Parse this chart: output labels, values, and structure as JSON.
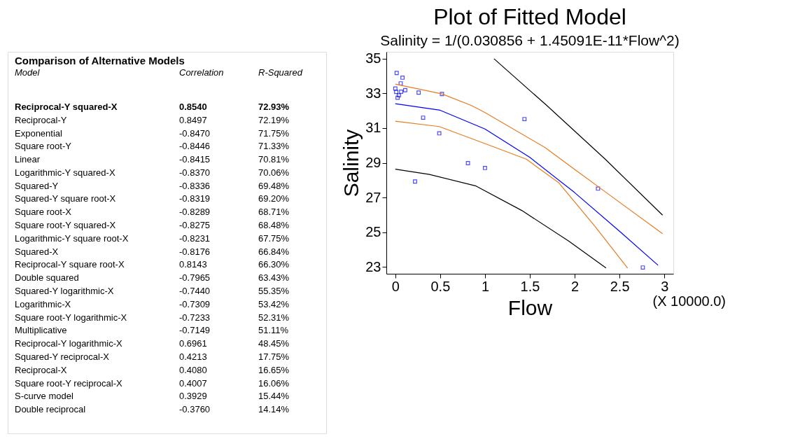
{
  "chart_data": [
    {
      "type": "other",
      "title": "Comparison of Alternative Models",
      "xlabel": "Model",
      "categories": [
        "Reciprocal-Y squared-X",
        "Reciprocal-Y",
        "Exponential",
        "Square root-Y",
        "Linear",
        "Logarithmic-Y squared-X",
        "Squared-Y",
        "Squared-Y square root-X",
        "Square root-X",
        "Square root-Y squared-X",
        "Logarithmic-Y square root-X",
        "Squared-X",
        "Reciprocal-Y square root-X",
        "Double squared",
        "Squared-Y logarithmic-X",
        "Logarithmic-X",
        "Square root-Y logarithmic-X",
        "Multiplicative",
        "Reciprocal-Y logarithmic-X",
        "Squared-Y reciprocal-X",
        "Reciprocal-X",
        "Square root-Y reciprocal-X",
        "S-curve model",
        "Double reciprocal"
      ],
      "series": [
        {
          "name": "Correlation",
          "values": [
            0.854,
            0.8497,
            -0.847,
            -0.8446,
            -0.8415,
            -0.837,
            -0.8336,
            -0.8319,
            -0.8289,
            -0.8275,
            -0.8231,
            -0.8176,
            0.8143,
            -0.7965,
            -0.744,
            -0.7309,
            -0.7233,
            -0.7149,
            0.6961,
            0.4213,
            0.408,
            0.4007,
            0.3929,
            -0.376
          ],
          "value_labels": [
            "0.8540",
            "0.8497",
            "-0.8470",
            "-0.8446",
            "-0.8415",
            "-0.8370",
            "-0.8336",
            "-0.8319",
            "-0.8289",
            "-0.8275",
            "-0.8231",
            "-0.8176",
            "0.8143",
            "-0.7965",
            "-0.7440",
            "-0.7309",
            "-0.7233",
            "-0.7149",
            "0.6961",
            "0.4213",
            "0.4080",
            "0.4007",
            "0.3929",
            "-0.3760"
          ]
        },
        {
          "name": "R-Squared",
          "values": [
            72.93,
            72.19,
            71.75,
            71.33,
            70.81,
            70.06,
            69.48,
            69.2,
            68.71,
            68.48,
            67.75,
            66.84,
            66.3,
            63.43,
            55.35,
            53.42,
            52.31,
            51.11,
            48.45,
            17.75,
            16.65,
            16.06,
            15.44,
            14.14
          ],
          "value_labels": [
            "72.93%",
            "72.19%",
            "71.75%",
            "71.33%",
            "70.81%",
            "70.06%",
            "69.48%",
            "69.20%",
            "68.71%",
            "68.48%",
            "67.75%",
            "66.84%",
            "66.30%",
            "63.43%",
            "55.35%",
            "53.42%",
            "52.31%",
            "51.11%",
            "48.45%",
            "17.75%",
            "16.65%",
            "16.06%",
            "15.44%",
            "14.14%"
          ]
        }
      ]
    },
    {
      "type": "scatter",
      "title": "Plot of Fitted Model",
      "subtitle": "Salinity = 1/(0.030856 + 1.45091E-11*Flow^2)",
      "xlabel": "Flow",
      "ylabel": "Salinity",
      "annotations": [
        "(X 10000.0)"
      ],
      "xlim": [
        -0.1,
        3.1
      ],
      "ylim": [
        22.6,
        35.4
      ],
      "xticks": [
        0,
        0.5,
        1,
        1.5,
        2,
        2.5,
        3
      ],
      "yticks": [
        23,
        25,
        27,
        29,
        31,
        33,
        35
      ],
      "grid": false,
      "series": [
        {
          "type": "scatter",
          "marker": "square",
          "color": "#0000ff",
          "x": [
            0.015,
            0.08,
            0.06,
            0.0,
            0.01,
            0.065,
            0.11,
            0.04,
            0.025,
            0.26,
            0.52,
            0.31,
            0.49,
            0.81,
            1.0,
            0.22,
            1.44,
            2.26,
            2.76
          ],
          "values": [
            34.18,
            33.91,
            33.58,
            33.28,
            33.09,
            33.1,
            33.19,
            32.89,
            32.75,
            33.05,
            32.97,
            31.6,
            30.7,
            28.98,
            28.7,
            27.92,
            31.52,
            27.51,
            22.96
          ]
        },
        {
          "type": "line",
          "color": "#0000ff",
          "x": [
            0,
            0.5,
            1,
            1.5,
            2,
            2.5,
            2.93
          ],
          "values": [
            32.41,
            32.03,
            30.95,
            29.31,
            27.28,
            25.05,
            23.09
          ]
        },
        {
          "type": "line",
          "color": "#e87b1e",
          "x": [
            0,
            0.52,
            0.85,
            1.0,
            1.67,
            2.0,
            2.34,
            2.98
          ],
          "values": [
            33.54,
            32.97,
            32.3,
            31.9,
            29.88,
            28.62,
            27.33,
            24.91
          ]
        },
        {
          "type": "line",
          "color": "#e87b1e",
          "x": [
            0,
            0.49,
            1.05,
            1.46,
            1.82,
            2.23,
            2.59
          ],
          "values": [
            31.4,
            31.09,
            30.01,
            29.21,
            27.86,
            25.31,
            22.93
          ]
        },
        {
          "type": "line",
          "color": "#000000",
          "x": [
            0,
            0.38,
            0.9,
            1.41,
            1.93,
            2.35
          ],
          "values": [
            28.63,
            28.33,
            27.66,
            26.25,
            24.5,
            22.93
          ]
        },
        {
          "type": "line",
          "color": "#000000",
          "x": [
            1.1,
            1.69,
            2.34,
            2.98
          ],
          "values": [
            35.0,
            32.3,
            29.21,
            25.98
          ]
        }
      ]
    }
  ]
}
